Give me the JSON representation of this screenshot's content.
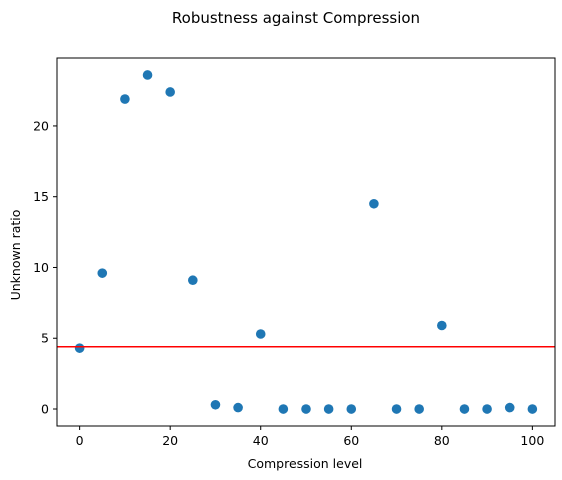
{
  "chart_data": {
    "type": "scatter",
    "title": "Robustness against Compression",
    "xlabel": "Compression level",
    "ylabel": "Unknown ratio",
    "xlim": [
      -5,
      105
    ],
    "ylim": [
      -1.2,
      24.8
    ],
    "xticks": [
      0,
      20,
      40,
      60,
      80,
      100
    ],
    "yticks": [
      0,
      5,
      10,
      15,
      20
    ],
    "grid": false,
    "legend": "none",
    "series": [
      {
        "color": "#1f77b4",
        "x": [
          0,
          5,
          10,
          15,
          20,
          25,
          30,
          35,
          40,
          45,
          50,
          55,
          60,
          65,
          70,
          75,
          80,
          85,
          90,
          95,
          100
        ],
        "y": [
          4.3,
          9.6,
          21.9,
          23.6,
          22.4,
          9.1,
          0.3,
          0.1,
          5.3,
          0.0,
          0.0,
          0.0,
          0.0,
          14.5,
          0.0,
          0.0,
          5.9,
          0.0,
          0.0,
          0.1,
          0.0
        ]
      }
    ],
    "reference_line": {
      "orientation": "horizontal",
      "y": 4.4,
      "color": "#ff0000"
    }
  }
}
